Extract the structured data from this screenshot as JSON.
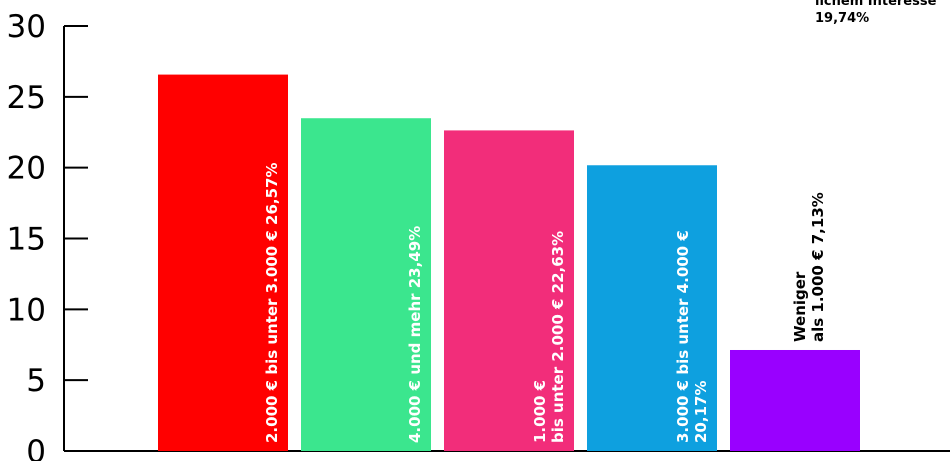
{
  "chart_data": {
    "type": "bar",
    "ylim": [
      0,
      30
    ],
    "yticks": [
      0,
      5,
      10,
      15,
      20,
      25,
      30
    ],
    "bars": [
      {
        "value": 26.57,
        "color": "#ff0000",
        "label_color": "#ffffff",
        "label_lines": [
          "2.000 € bis unter 3.000 € 26,57%"
        ]
      },
      {
        "value": 23.49,
        "color": "#3be68e",
        "label_color": "#ffffff",
        "label_lines": [
          "4.000 € und mehr 23,49%"
        ]
      },
      {
        "value": 22.63,
        "color": "#f22d7a",
        "label_color": "#ffffff",
        "label_lines": [
          "1.000 €",
          "bis unter 2.000 € 22,63%"
        ]
      },
      {
        "value": 20.17,
        "color": "#0ea0df",
        "label_color": "#ffffff",
        "label_lines": [
          "3.000 € bis unter 4.000 €",
          "20,17%"
        ]
      },
      {
        "value": 7.13,
        "color": "#9900ff",
        "label_color": "#000000",
        "label_lines": [
          "Weniger",
          "als 1.000 €  7,13%"
        ]
      }
    ],
    "annotation": {
      "lines": [
        "lichem Interesse",
        "19,74%"
      ]
    }
  }
}
